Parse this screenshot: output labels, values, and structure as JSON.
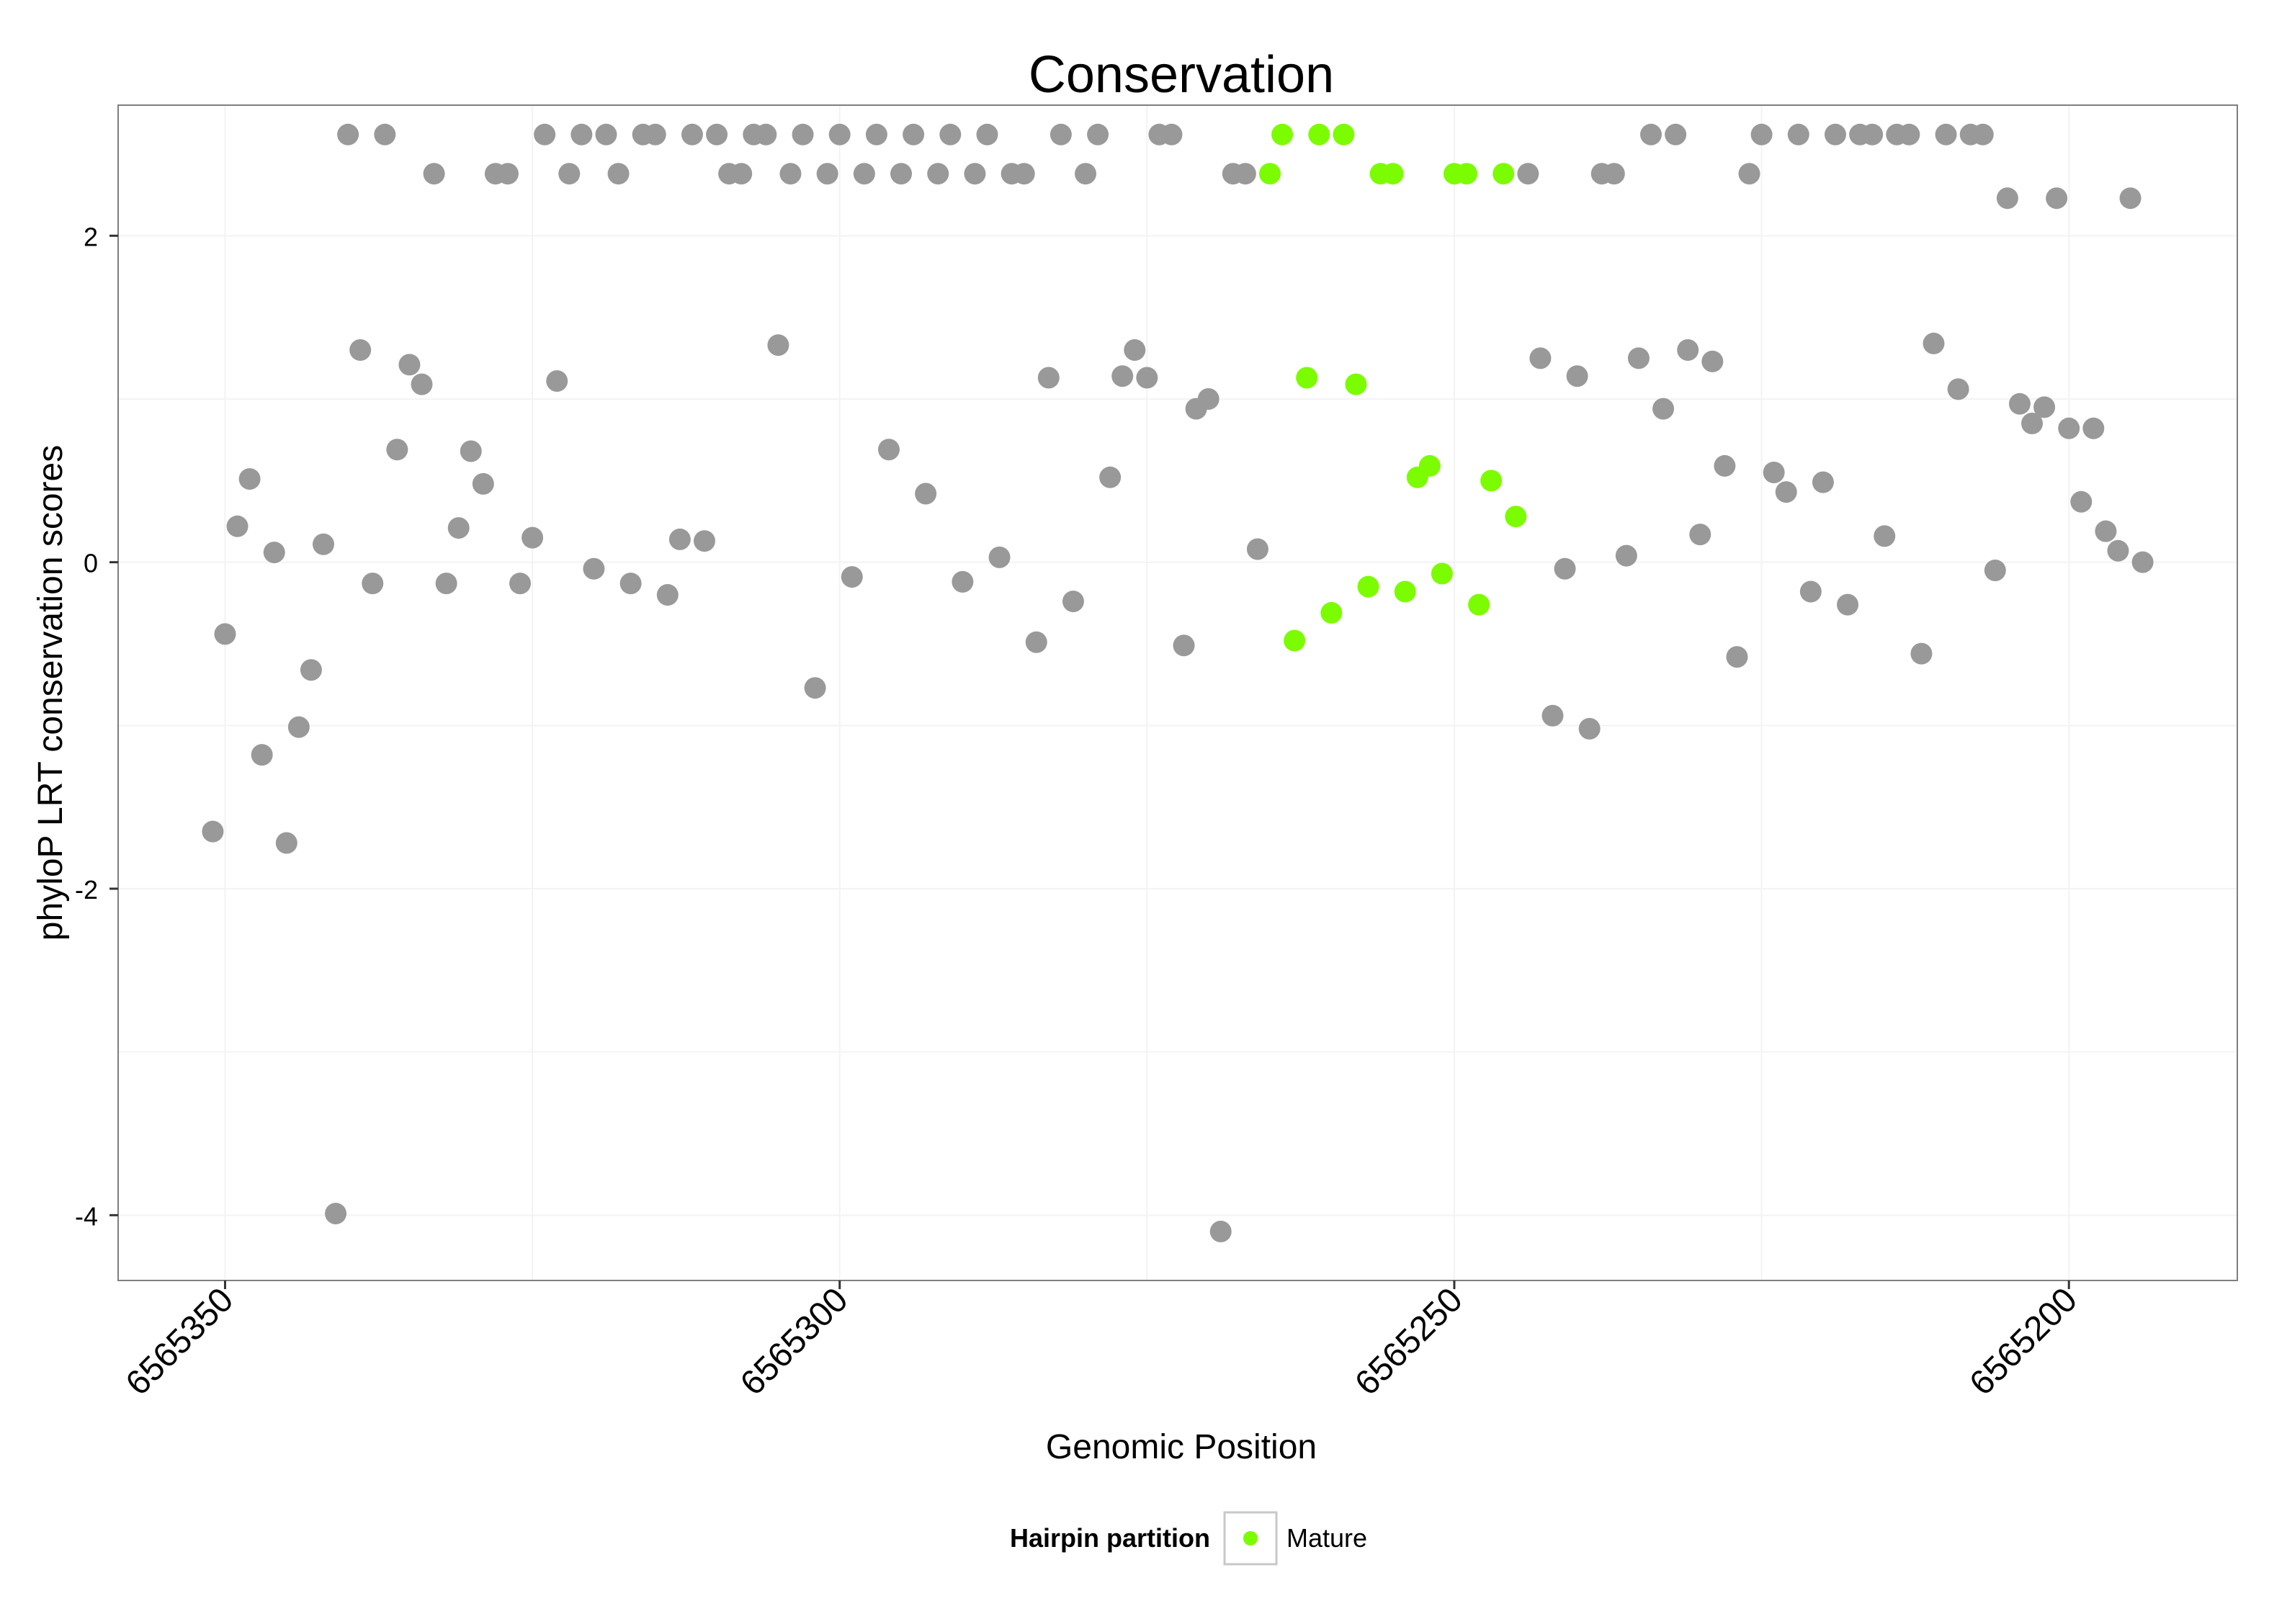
{
  "chart_data": {
    "type": "scatter",
    "title": "Conservation",
    "xlabel": "Genomic Position",
    "ylabel": "phyloP LRT conservation scores",
    "x_reversed": true,
    "xlim": [
      6565358.7,
      6565186.3
    ],
    "ylim": [
      -4.4,
      2.8
    ],
    "x_ticks": [
      6565350,
      6565300,
      6565250,
      6565200
    ],
    "x_tick_labels": [
      "6565350",
      "6565300",
      "6565250",
      "6565200"
    ],
    "x_minor_ticks": [
      6565325,
      6565275,
      6565225
    ],
    "y_ticks": [
      2,
      0,
      -2,
      -4
    ],
    "y_tick_labels": [
      "2",
      "0",
      "-2",
      "-4"
    ],
    "y_minor_ticks": [
      1,
      -1,
      -3
    ],
    "grid": true,
    "legend": {
      "position": "bottom",
      "title": "Hairpin partition",
      "entries": [
        {
          "label": "Mature",
          "color": "#7cfc00"
        }
      ]
    },
    "colors": {
      "other": "#999999",
      "mature": "#7cfc00",
      "panel_border": "#7f7f7f",
      "grid": "#f3f3f3"
    },
    "series": [
      {
        "name": "Other",
        "color": "#999999",
        "points": [
          [
            6565351,
            -1.65
          ],
          [
            6565350,
            -0.44
          ],
          [
            6565349,
            0.22
          ],
          [
            6565348,
            0.51
          ],
          [
            6565347,
            -1.18
          ],
          [
            6565346,
            0.06
          ],
          [
            6565345,
            -1.72
          ],
          [
            6565344,
            -1.01
          ],
          [
            6565343,
            -0.66
          ],
          [
            6565342,
            0.11
          ],
          [
            6565341,
            -3.99
          ],
          [
            6565340,
            2.62
          ],
          [
            6565339,
            1.3
          ],
          [
            6565338,
            -0.13
          ],
          [
            6565337,
            2.62
          ],
          [
            6565336,
            0.69
          ],
          [
            6565335,
            1.21
          ],
          [
            6565334,
            1.09
          ],
          [
            6565333,
            2.38
          ],
          [
            6565332,
            -0.13
          ],
          [
            6565331,
            0.21
          ],
          [
            6565330,
            0.68
          ],
          [
            6565329,
            0.48
          ],
          [
            6565328,
            2.38
          ],
          [
            6565327,
            2.38
          ],
          [
            6565326,
            -0.13
          ],
          [
            6565325,
            0.15
          ],
          [
            6565324,
            2.62
          ],
          [
            6565323,
            1.11
          ],
          [
            6565322,
            2.38
          ],
          [
            6565321,
            2.62
          ],
          [
            6565320,
            -0.04
          ],
          [
            6565319,
            2.62
          ],
          [
            6565318,
            2.38
          ],
          [
            6565317,
            -0.13
          ],
          [
            6565316,
            2.62
          ],
          [
            6565315,
            2.62
          ],
          [
            6565314,
            -0.2
          ],
          [
            6565313,
            0.14
          ],
          [
            6565312,
            2.62
          ],
          [
            6565311,
            0.13
          ],
          [
            6565310,
            2.62
          ],
          [
            6565309,
            2.38
          ],
          [
            6565308,
            2.38
          ],
          [
            6565307,
            2.62
          ],
          [
            6565306,
            2.62
          ],
          [
            6565305,
            1.33
          ],
          [
            6565304,
            2.38
          ],
          [
            6565303,
            2.62
          ],
          [
            6565302,
            -0.77
          ],
          [
            6565301,
            2.38
          ],
          [
            6565300,
            2.62
          ],
          [
            6565299,
            -0.09
          ],
          [
            6565298,
            2.38
          ],
          [
            6565297,
            2.62
          ],
          [
            6565296,
            0.69
          ],
          [
            6565295,
            2.38
          ],
          [
            6565294,
            2.62
          ],
          [
            6565293,
            0.42
          ],
          [
            6565292,
            2.38
          ],
          [
            6565291,
            2.62
          ],
          [
            6565290,
            -0.12
          ],
          [
            6565289,
            2.38
          ],
          [
            6565288,
            2.62
          ],
          [
            6565287,
            0.03
          ],
          [
            6565286,
            2.38
          ],
          [
            6565285,
            2.38
          ],
          [
            6565284,
            -0.49
          ],
          [
            6565283,
            1.13
          ],
          [
            6565282,
            2.62
          ],
          [
            6565281,
            -0.24
          ],
          [
            6565280,
            2.38
          ],
          [
            6565279,
            2.62
          ],
          [
            6565278,
            0.52
          ],
          [
            6565277,
            1.14
          ],
          [
            6565276,
            1.3
          ],
          [
            6565275,
            1.13
          ],
          [
            6565274,
            2.62
          ],
          [
            6565273,
            2.62
          ],
          [
            6565272,
            -0.51
          ],
          [
            6565271,
            0.94
          ],
          [
            6565270,
            1.0
          ],
          [
            6565269,
            -4.1
          ],
          [
            6565268,
            2.38
          ],
          [
            6565267,
            2.38
          ],
          [
            6565266,
            0.08
          ],
          [
            6565244,
            2.38
          ],
          [
            6565243,
            1.25
          ],
          [
            6565242,
            -0.94
          ],
          [
            6565241,
            -0.04
          ],
          [
            6565240,
            1.14
          ],
          [
            6565239,
            -1.02
          ],
          [
            6565238,
            2.38
          ],
          [
            6565237,
            2.38
          ],
          [
            6565236,
            0.04
          ],
          [
            6565235,
            1.25
          ],
          [
            6565234,
            2.62
          ],
          [
            6565233,
            0.94
          ],
          [
            6565232,
            2.62
          ],
          [
            6565231,
            1.3
          ],
          [
            6565230,
            0.17
          ],
          [
            6565229,
            1.23
          ],
          [
            6565228,
            0.59
          ],
          [
            6565227,
            -0.58
          ],
          [
            6565226,
            2.38
          ],
          [
            6565225,
            2.62
          ],
          [
            6565224,
            0.55
          ],
          [
            6565223,
            0.43
          ],
          [
            6565222,
            2.62
          ],
          [
            6565221,
            -0.18
          ],
          [
            6565220,
            0.49
          ],
          [
            6565219,
            2.62
          ],
          [
            6565218,
            -0.26
          ],
          [
            6565217,
            2.62
          ],
          [
            6565216,
            2.62
          ],
          [
            6565215,
            0.16
          ],
          [
            6565214,
            2.62
          ],
          [
            6565213,
            2.62
          ],
          [
            6565212,
            -0.56
          ],
          [
            6565211,
            1.34
          ],
          [
            6565210,
            2.62
          ],
          [
            6565209,
            1.06
          ],
          [
            6565208,
            2.62
          ],
          [
            6565207,
            2.62
          ],
          [
            6565206,
            -0.05
          ],
          [
            6565205,
            2.23
          ],
          [
            6565204,
            0.97
          ],
          [
            6565203,
            0.85
          ],
          [
            6565202,
            0.95
          ],
          [
            6565201,
            2.23
          ],
          [
            6565200,
            0.82
          ],
          [
            6565199,
            0.37
          ],
          [
            6565198,
            0.82
          ],
          [
            6565197,
            0.19
          ],
          [
            6565196,
            0.07
          ],
          [
            6565195,
            2.23
          ],
          [
            6565194,
            0.0
          ]
        ]
      },
      {
        "name": "Mature",
        "color": "#7cfc00",
        "points": [
          [
            6565265,
            2.38
          ],
          [
            6565264,
            2.62
          ],
          [
            6565263,
            -0.48
          ],
          [
            6565262,
            1.13
          ],
          [
            6565261,
            2.62
          ],
          [
            6565260,
            -0.31
          ],
          [
            6565259,
            2.62
          ],
          [
            6565258,
            1.09
          ],
          [
            6565257,
            -0.15
          ],
          [
            6565256,
            2.38
          ],
          [
            6565255,
            2.38
          ],
          [
            6565254,
            -0.18
          ],
          [
            6565253,
            0.52
          ],
          [
            6565252,
            0.59
          ],
          [
            6565251,
            -0.07
          ],
          [
            6565250,
            2.38
          ],
          [
            6565249,
            2.38
          ],
          [
            6565248,
            -0.26
          ],
          [
            6565247,
            0.5
          ],
          [
            6565246,
            2.38
          ],
          [
            6565245,
            0.28
          ]
        ]
      }
    ]
  }
}
